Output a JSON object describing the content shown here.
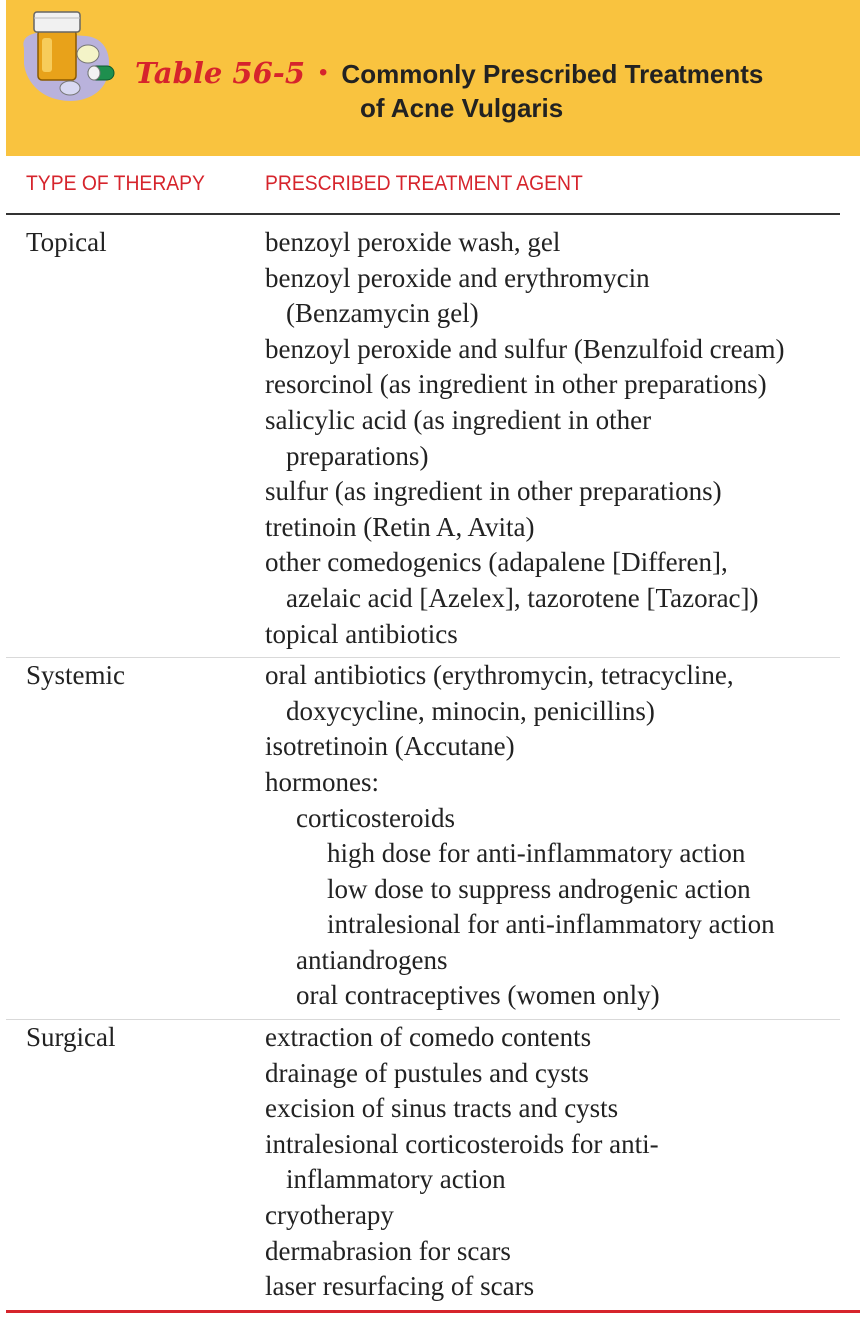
{
  "header": {
    "table_label": "Table 56-5",
    "bullet": "•",
    "title_line1": "Commonly Prescribed Treatments",
    "title_line2": "of Acne Vulgaris",
    "icon": "pill-bottle-icon"
  },
  "columns": {
    "type": "TYPE OF THERAPY",
    "agent": "PRESCRIBED TREATMENT AGENT"
  },
  "rows": [
    {
      "type": "Topical",
      "lines": [
        {
          "text": "benzoyl peroxide wash, gel",
          "indent": 0
        },
        {
          "text": "benzoyl peroxide and erythromycin",
          "indent": 0
        },
        {
          "text": "(Benzamycin gel)",
          "indent": 1
        },
        {
          "text": "benzoyl peroxide and sulfur (Benzulfoid cream)",
          "indent": 0
        },
        {
          "text": "resorcinol (as ingredient in other preparations)",
          "indent": 0
        },
        {
          "text": "salicylic acid (as ingredient in other",
          "indent": 0
        },
        {
          "text": "preparations)",
          "indent": 1
        },
        {
          "text": "sulfur (as ingredient in other preparations)",
          "indent": 0
        },
        {
          "text": "tretinoin (Retin A, Avita)",
          "indent": 0
        },
        {
          "text": "other comedogenics (adapalene [Differen],",
          "indent": 0
        },
        {
          "text": "azelaic acid [Azelex], tazorotene [Tazorac])",
          "indent": 1
        },
        {
          "text": "topical antibiotics",
          "indent": 0
        }
      ]
    },
    {
      "type": "Systemic",
      "lines": [
        {
          "text": "oral antibiotics (erythromycin, tetracycline,",
          "indent": 0
        },
        {
          "text": "doxycycline, minocin, penicillins)",
          "indent": 1
        },
        {
          "text": "isotretinoin (Accutane)",
          "indent": 0
        },
        {
          "text": "hormones:",
          "indent": 0
        },
        {
          "text": "corticosteroids",
          "indent": 2
        },
        {
          "text": "high dose for anti-inflammatory action",
          "indent": 3
        },
        {
          "text": "low dose to suppress androgenic action",
          "indent": 3
        },
        {
          "text": "intralesional for anti-inflammatory action",
          "indent": 3
        },
        {
          "text": "antiandrogens",
          "indent": 2
        },
        {
          "text": "oral contraceptives (women only)",
          "indent": 2
        }
      ]
    },
    {
      "type": "Surgical",
      "lines": [
        {
          "text": "extraction of comedo contents",
          "indent": 0
        },
        {
          "text": "drainage of pustules and cysts",
          "indent": 0
        },
        {
          "text": "excision of sinus tracts and cysts",
          "indent": 0
        },
        {
          "text": "intralesional corticosteroids for anti-",
          "indent": 0
        },
        {
          "text": "inflammatory action",
          "indent": 1
        },
        {
          "text": "cryotherapy",
          "indent": 0
        },
        {
          "text": "dermabrasion for scars",
          "indent": 0
        },
        {
          "text": "laser resurfacing of scars",
          "indent": 0
        }
      ]
    }
  ]
}
